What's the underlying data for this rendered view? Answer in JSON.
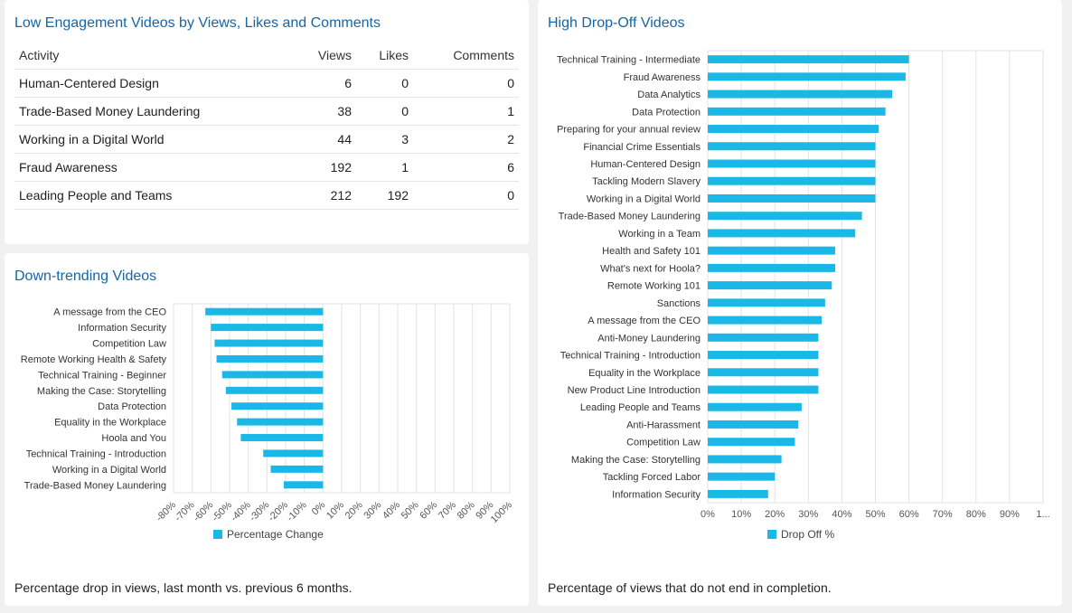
{
  "engagement": {
    "title": "Low Engagement Videos by Views, Likes and Comments",
    "columns": [
      "Activity",
      "Views",
      "Likes",
      "Comments"
    ],
    "rows": [
      {
        "activity": "Human-Centered Design",
        "views": "6",
        "likes": "0",
        "comments": "0"
      },
      {
        "activity": "Trade-Based Money Laundering",
        "views": "38",
        "likes": "0",
        "comments": "1"
      },
      {
        "activity": "Working in a Digital World",
        "views": "44",
        "likes": "3",
        "comments": "2"
      },
      {
        "activity": "Fraud Awareness",
        "views": "192",
        "likes": "1",
        "comments": "6"
      },
      {
        "activity": "Leading People and Teams",
        "views": "212",
        "likes": "192",
        "comments": "0"
      }
    ]
  },
  "downtrend": {
    "title": "Down-trending Videos",
    "footnote": "Percentage drop in views, last month vs. previous 6 months."
  },
  "dropoff": {
    "title": "High Drop-Off Videos",
    "footnote": "Percentage of views that do not end in completion."
  },
  "colors": {
    "bar": "#1ab8e6",
    "title": "#1565a8",
    "grid": "#e3e3e3"
  },
  "chart_data": [
    {
      "id": "downtrend",
      "type": "bar",
      "orientation": "horizontal",
      "title": "Down-trending Videos",
      "categories": [
        "A message from the CEO",
        "Information Security",
        "Competition Law",
        "Remote Working Health & Safety",
        "Technical Training - Beginner",
        "Making the Case: Storytelling",
        "Data Protection",
        "Equality in the Workplace",
        "Hoola and You",
        "Technical Training - Introduction",
        "Working in a Digital World",
        "Trade-Based Money Laundering"
      ],
      "series": [
        {
          "name": "Percentage Change",
          "values": [
            -63,
            -60,
            -58,
            -57,
            -54,
            -52,
            -49,
            -46,
            -44,
            -32,
            -28,
            -21
          ]
        }
      ],
      "xlim": [
        -80,
        100
      ],
      "xticks": [
        "-80%",
        "-70%",
        "-60%",
        "-50%",
        "-40%",
        "-30%",
        "-20%",
        "-10%",
        "0%",
        "10%",
        "20%",
        "30%",
        "40%",
        "50%",
        "60%",
        "70%",
        "80%",
        "90%",
        "100%"
      ],
      "legend": "bottom",
      "grid": true
    },
    {
      "id": "dropoff",
      "type": "bar",
      "orientation": "horizontal",
      "title": "High Drop-Off Videos",
      "categories": [
        "Technical Training - Intermediate",
        "Fraud Awareness",
        "Data Analytics",
        "Data Protection",
        "Preparing for your annual review",
        "Financial Crime Essentials",
        "Human-Centered Design",
        "Tackling Modern Slavery",
        "Working in a Digital World",
        "Trade-Based Money Laundering",
        "Working in a Team",
        "Health and Safety 101",
        "What's next for Hoola?",
        "Remote Working 101",
        "Sanctions",
        "A message from the CEO",
        "Anti-Money Laundering",
        "Technical Training - Introduction",
        "Equality in the Workplace",
        "New Product Line Introduction",
        "Leading People and Teams",
        "Anti-Harassment",
        "Competition Law",
        "Making the Case: Storytelling",
        "Tackling Forced Labor",
        "Information Security"
      ],
      "series": [
        {
          "name": "Drop Off %",
          "values": [
            60,
            59,
            55,
            53,
            51,
            50,
            50,
            50,
            50,
            46,
            44,
            38,
            38,
            37,
            35,
            34,
            33,
            33,
            33,
            33,
            28,
            27,
            26,
            22,
            20,
            18
          ]
        }
      ],
      "xlim": [
        0,
        100
      ],
      "xticks": [
        "0%",
        "10%",
        "20%",
        "30%",
        "40%",
        "50%",
        "60%",
        "70%",
        "80%",
        "90%",
        "1..."
      ],
      "legend": "bottom",
      "grid": true
    }
  ]
}
